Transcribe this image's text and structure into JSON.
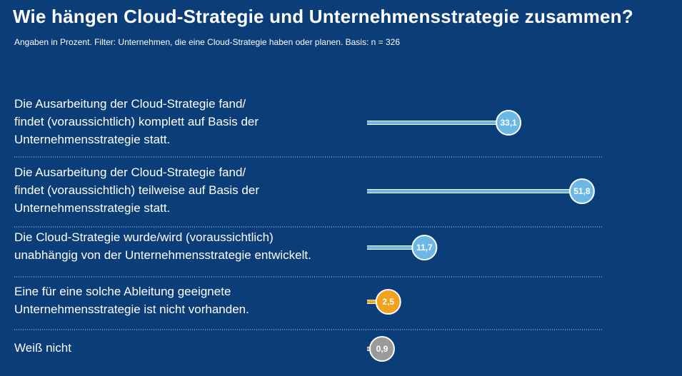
{
  "chart_data": {
    "type": "lollipop",
    "title": "Wie hängen Cloud-Strategie und Unternehmensstrategie zusammen?",
    "subtitle": "Angaben in Prozent. Filter: Unternehmen, die eine Cloud-Strategie haben oder planen. Basis: n = 326",
    "categories": [
      "Die Ausarbeitung der Cloud-Strategie fand/\nfindet (voraussichtlich) komplett auf Basis der\nUnternehmensstrategie statt.",
      "Die Ausarbeitung der Cloud-Strategie fand/\nfindet (voraussichtlich) teilweise auf Basis der\nUnternehmensstrategie statt.",
      "Die Cloud-Strategie wurde/wird (voraussichtlich)\nunabhängig von der Unternehmensstrategie entwickelt.",
      "Eine für eine solche Ableitung geeignete\nUnternehmensstrategie ist nicht vorhanden.",
      "Weiß nicht"
    ],
    "values": [
      33.1,
      51.8,
      11.7,
      2.5,
      0.9
    ],
    "value_labels": [
      "33,1",
      "51,8",
      "11,7",
      "2,5",
      "0,9"
    ],
    "colors": [
      "#6bb8e6",
      "#6bb8e6",
      "#6bb8e6",
      "#f1a21f",
      "#9a9a9a"
    ]
  }
}
